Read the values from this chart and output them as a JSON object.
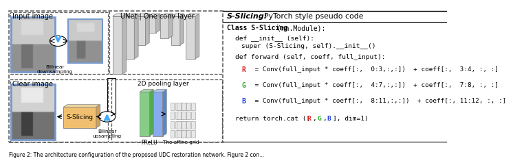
{
  "bg_color": "#ffffff",
  "caption": "Figure 2: The architecture configuration of the proposed UDC restoration network. Figure 2 con...",
  "right_title_bold": "S-Slicing:",
  "right_title_normal": "    PyTorch style pseudo code",
  "code": {
    "class_line": "Class S-Slicing (nn.Module):",
    "init_def": "def __init__ (self):",
    "init_super": "super (S-Slicing, self).__init__()",
    "fwd_def": "def forward (self, coeff, full_input):",
    "R_colored": "R",
    "R_rest": " = Conv(full_input * coeff[:,  0:3,:,:]) + coeff[:,  3:4, :, :]",
    "G_colored": "G",
    "G_rest": " = Conv(full_input * coeff[:,  4:7,:,:]) + coeff[:,  7:8, :, :]",
    "B_colored": "B",
    "B_rest": " = Conv(full_input * coeff[:,  8:11,:,:]) + coeff[:, 11:12, :, :]",
    "ret_pre": "return torch.cat ([",
    "ret_R": "R",
    "ret_comma1": ", ",
    "ret_G": "G",
    "ret_comma2": ", ",
    "ret_B": "B",
    "ret_post": "], dim=1)"
  },
  "colors": {
    "R": "#dd2222",
    "G": "#22aa22",
    "B": "#2244dd",
    "black": "#000000",
    "gray_bar": "#cccccc",
    "gray_bar_dark": "#aaaaaa",
    "bar_top": "#e8e8e8",
    "bar_side": "#bbbbbb",
    "green_bar": "#88cc88",
    "blue_bar": "#88aaee",
    "orange_box": "#f0c070",
    "orange_edge": "#c08030",
    "blue_arrow": "#44aaff",
    "dashed_border": "#555555",
    "img_border": "#7799cc"
  }
}
